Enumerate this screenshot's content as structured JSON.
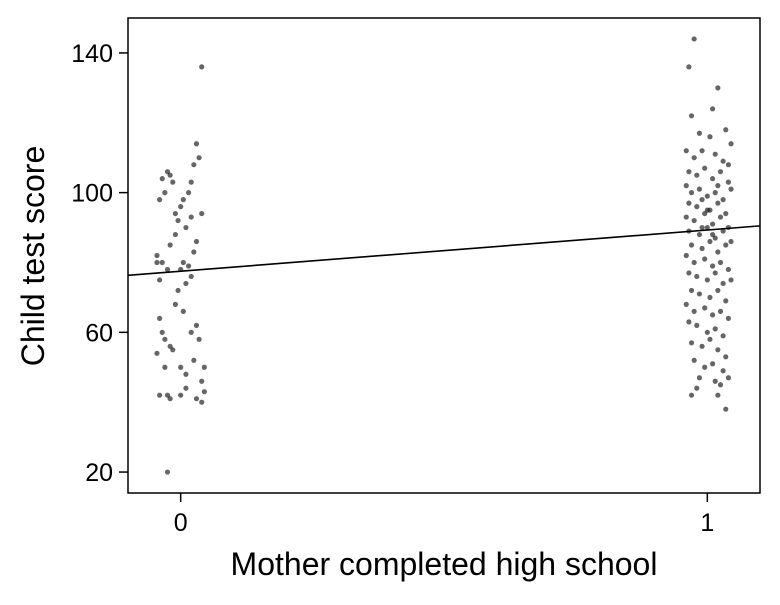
{
  "chart_data": {
    "type": "scatter",
    "title": "",
    "xlabel": "Mother completed high school",
    "ylabel": "Child test score",
    "xlim": [
      -0.1,
      1.1
    ],
    "ylim": [
      14,
      150
    ],
    "xticks": [
      0,
      1
    ],
    "xtick_labels": [
      "0",
      "1"
    ],
    "yticks": [
      20,
      60,
      100,
      140
    ],
    "ytick_labels": [
      "20",
      "60",
      "100",
      "140"
    ],
    "grid": false,
    "legend": "none",
    "colors": {
      "points": "#000000",
      "line": "#000000",
      "axis": "#000000"
    },
    "point_opacity": 0.6,
    "regression_line": {
      "intercept": 77.5,
      "slope": 11.8
    },
    "series": [
      {
        "points": [
          [
            -0.045,
            82
          ],
          [
            -0.04,
            98
          ],
          [
            -0.035,
            104
          ],
          [
            -0.03,
            100
          ],
          [
            -0.025,
            106
          ],
          [
            -0.02,
            105
          ],
          [
            -0.015,
            103
          ],
          [
            -0.01,
            94
          ],
          [
            0.0,
            96
          ],
          [
            0.005,
            98
          ],
          [
            0.01,
            90
          ],
          [
            0.015,
            100
          ],
          [
            0.02,
            103
          ],
          [
            0.025,
            108
          ],
          [
            0.03,
            114
          ],
          [
            0.035,
            110
          ],
          [
            0.04,
            94
          ],
          [
            -0.04,
            75
          ],
          [
            -0.035,
            80
          ],
          [
            -0.025,
            78
          ],
          [
            -0.02,
            85
          ],
          [
            -0.01,
            88
          ],
          [
            -0.005,
            72
          ],
          [
            0.0,
            78
          ],
          [
            0.005,
            80
          ],
          [
            0.01,
            74
          ],
          [
            0.015,
            79
          ],
          [
            0.02,
            76
          ],
          [
            0.025,
            83
          ],
          [
            0.03,
            86
          ],
          [
            -0.04,
            64
          ],
          [
            -0.035,
            60
          ],
          [
            -0.03,
            58
          ],
          [
            -0.02,
            56
          ],
          [
            -0.01,
            68
          ],
          [
            0.005,
            66
          ],
          [
            0.02,
            60
          ],
          [
            0.03,
            62
          ],
          [
            0.035,
            58
          ],
          [
            -0.045,
            54
          ],
          [
            -0.03,
            50
          ],
          [
            -0.015,
            55
          ],
          [
            0.0,
            50
          ],
          [
            0.01,
            48
          ],
          [
            0.025,
            52
          ],
          [
            0.04,
            46
          ],
          [
            -0.04,
            42
          ],
          [
            -0.025,
            42
          ],
          [
            -0.02,
            41
          ],
          [
            0.0,
            42
          ],
          [
            0.01,
            44
          ],
          [
            0.03,
            41
          ],
          [
            0.04,
            40
          ],
          [
            0.045,
            43
          ],
          [
            0.04,
            136
          ],
          [
            -0.025,
            20
          ],
          [
            -0.045,
            80
          ],
          [
            0.045,
            50
          ],
          [
            -0.005,
            92
          ],
          [
            0.02,
            93
          ]
        ]
      },
      {
        "points": [
          [
            0.975,
            144
          ],
          [
            0.965,
            136
          ],
          [
            1.02,
            130
          ],
          [
            1.01,
            124
          ],
          [
            0.97,
            122
          ],
          [
            1.035,
            118
          ],
          [
            0.985,
            117
          ],
          [
            1.005,
            116
          ],
          [
            1.045,
            114
          ],
          [
            0.96,
            112
          ],
          [
            0.975,
            110
          ],
          [
            0.99,
            112
          ],
          [
            1.015,
            111
          ],
          [
            1.03,
            109
          ],
          [
            1.04,
            108
          ],
          [
            0.965,
            106
          ],
          [
            0.98,
            105
          ],
          [
            0.995,
            107
          ],
          [
            1.01,
            104
          ],
          [
            1.025,
            106
          ],
          [
            1.04,
            103
          ],
          [
            0.96,
            102
          ],
          [
            0.97,
            100
          ],
          [
            0.985,
            101
          ],
          [
            1.0,
            99
          ],
          [
            1.015,
            100
          ],
          [
            1.03,
            98
          ],
          [
            1.045,
            101
          ],
          [
            0.965,
            97
          ],
          [
            0.98,
            96
          ],
          [
            0.99,
            98
          ],
          [
            1.005,
            95
          ],
          [
            1.02,
            97
          ],
          [
            1.035,
            94
          ],
          [
            0.96,
            93
          ],
          [
            0.975,
            92
          ],
          [
            0.995,
            94
          ],
          [
            1.01,
            91
          ],
          [
            1.025,
            93
          ],
          [
            1.04,
            90
          ],
          [
            0.965,
            89
          ],
          [
            0.985,
            88
          ],
          [
            1.0,
            90
          ],
          [
            1.015,
            87
          ],
          [
            1.03,
            89
          ],
          [
            1.045,
            86
          ],
          [
            0.97,
            85
          ],
          [
            0.99,
            84
          ],
          [
            1.005,
            86
          ],
          [
            1.02,
            83
          ],
          [
            1.035,
            85
          ],
          [
            0.96,
            82
          ],
          [
            0.975,
            80
          ],
          [
            0.995,
            81
          ],
          [
            1.01,
            79
          ],
          [
            1.025,
            80
          ],
          [
            1.04,
            78
          ],
          [
            0.965,
            77
          ],
          [
            0.98,
            76
          ],
          [
            1.0,
            75
          ],
          [
            1.015,
            77
          ],
          [
            1.03,
            74
          ],
          [
            1.045,
            75
          ],
          [
            0.97,
            72
          ],
          [
            0.985,
            71
          ],
          [
            1.005,
            70
          ],
          [
            1.02,
            72
          ],
          [
            1.035,
            69
          ],
          [
            0.96,
            68
          ],
          [
            0.975,
            66
          ],
          [
            0.995,
            67
          ],
          [
            1.01,
            65
          ],
          [
            1.025,
            66
          ],
          [
            1.04,
            64
          ],
          [
            0.965,
            63
          ],
          [
            0.98,
            62
          ],
          [
            1.0,
            60
          ],
          [
            1.015,
            61
          ],
          [
            1.03,
            59
          ],
          [
            0.97,
            57
          ],
          [
            0.99,
            56
          ],
          [
            1.005,
            58
          ],
          [
            1.02,
            55
          ],
          [
            1.035,
            53
          ],
          [
            0.975,
            52
          ],
          [
            0.995,
            50
          ],
          [
            1.01,
            51
          ],
          [
            1.03,
            49
          ],
          [
            0.985,
            47
          ],
          [
            1.015,
            46
          ],
          [
            1.04,
            47
          ],
          [
            0.98,
            44
          ],
          [
            1.025,
            45
          ],
          [
            0.97,
            42
          ],
          [
            1.02,
            42
          ],
          [
            1.035,
            38
          ],
          [
            1.0,
            95
          ],
          [
            0.99,
            90
          ],
          [
            1.01,
            88
          ],
          [
            1.02,
            102
          ]
        ]
      }
    ]
  }
}
